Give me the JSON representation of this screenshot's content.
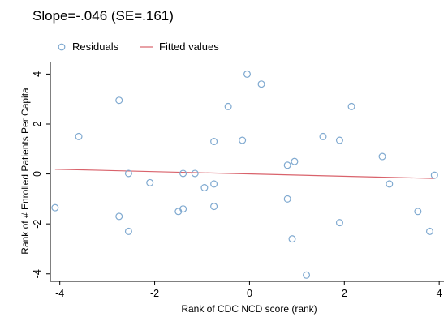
{
  "chart_data": {
    "type": "scatter",
    "title": "Slope=-.046 (SE=.161)",
    "xlabel": "Rank of CDC NCD score (rank)",
    "ylabel": "Rank of # Enrolled Patients Per Capita",
    "xlim": [
      -4.2,
      4.1
    ],
    "ylim": [
      -4.3,
      4.5
    ],
    "xticks": [
      -4,
      -2,
      0,
      2,
      4
    ],
    "yticks": [
      -4,
      -2,
      0,
      2,
      4
    ],
    "legend_position": "top",
    "grid": false,
    "series": [
      {
        "name": "Residuals",
        "kind": "scatter",
        "color": "#7fa9d0",
        "points": [
          [
            -4.1,
            -1.35
          ],
          [
            -3.6,
            1.5
          ],
          [
            -2.75,
            2.95
          ],
          [
            -2.75,
            -1.7
          ],
          [
            -2.55,
            0.02
          ],
          [
            -2.55,
            -2.3
          ],
          [
            -2.1,
            -0.35
          ],
          [
            -1.5,
            -1.5
          ],
          [
            -1.4,
            0.02
          ],
          [
            -1.4,
            -1.4
          ],
          [
            -1.15,
            0.02
          ],
          [
            -0.95,
            -0.55
          ],
          [
            -0.75,
            1.3
          ],
          [
            -0.75,
            -0.4
          ],
          [
            -0.75,
            -1.3
          ],
          [
            -0.45,
            2.7
          ],
          [
            -0.15,
            1.35
          ],
          [
            -0.05,
            4.0
          ],
          [
            0.25,
            3.6
          ],
          [
            0.8,
            0.35
          ],
          [
            0.8,
            -1.0
          ],
          [
            0.9,
            -2.6
          ],
          [
            0.95,
            0.5
          ],
          [
            1.2,
            -4.05
          ],
          [
            1.55,
            1.5
          ],
          [
            1.9,
            1.35
          ],
          [
            1.9,
            -1.95
          ],
          [
            2.15,
            2.7
          ],
          [
            2.8,
            0.7
          ],
          [
            2.95,
            -0.4
          ],
          [
            3.55,
            -1.5
          ],
          [
            3.8,
            -2.3
          ],
          [
            3.9,
            -0.05
          ]
        ]
      },
      {
        "name": "Fitted values",
        "kind": "line",
        "color": "#d9626b",
        "points": [
          [
            -4.1,
            0.19
          ],
          [
            3.9,
            -0.18
          ]
        ]
      }
    ]
  }
}
